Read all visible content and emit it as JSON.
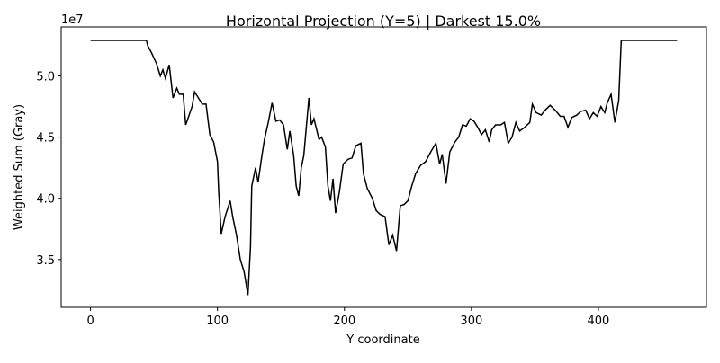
{
  "chart_data": {
    "type": "line",
    "title": "Horizontal Projection (Y=5) | Darkest 15.0%",
    "xlabel": "Y coordinate",
    "ylabel": "Weighted Sum (Gray)",
    "y_offset_label": "1e7",
    "color": "#000000",
    "x": [
      0,
      44,
      45,
      48,
      52,
      55,
      57,
      59,
      62,
      65,
      68,
      70,
      73,
      75,
      80,
      82,
      85,
      88,
      91,
      94,
      97,
      100,
      101,
      103,
      106,
      110,
      112,
      115,
      118,
      121,
      124,
      126,
      127,
      130,
      132,
      135,
      137,
      140,
      143,
      146,
      149,
      152,
      155,
      157,
      160,
      162,
      164,
      166,
      168,
      172,
      174,
      176,
      180,
      182,
      185,
      187,
      189,
      191,
      193,
      196,
      199,
      203,
      206,
      209,
      213,
      215,
      218,
      222,
      225,
      228,
      232,
      235,
      238,
      241,
      244,
      247,
      250,
      253,
      256,
      260,
      264,
      268,
      272,
      275,
      277,
      280,
      283,
      287,
      290,
      293,
      296,
      299,
      302,
      305,
      308,
      311,
      314,
      316,
      319,
      323,
      326,
      329,
      332,
      335,
      338,
      342,
      346,
      348,
      351,
      355,
      358,
      362,
      366,
      370,
      373,
      376,
      379,
      383,
      386,
      390,
      393,
      396,
      399,
      402,
      405,
      407,
      410,
      413,
      416,
      418,
      462
    ],
    "values": [
      5.29,
      5.29,
      5.25,
      5.19,
      5.1,
      5.0,
      5.05,
      4.98,
      5.09,
      4.82,
      4.9,
      4.85,
      4.85,
      4.6,
      4.75,
      4.87,
      4.82,
      4.77,
      4.77,
      4.52,
      4.46,
      4.3,
      4.05,
      3.71,
      3.85,
      3.98,
      3.85,
      3.7,
      3.5,
      3.4,
      3.21,
      3.6,
      4.1,
      4.25,
      4.13,
      4.35,
      4.48,
      4.62,
      4.78,
      4.63,
      4.64,
      4.6,
      4.4,
      4.55,
      4.35,
      4.1,
      4.02,
      4.25,
      4.35,
      4.82,
      4.6,
      4.65,
      4.48,
      4.5,
      4.42,
      4.1,
      3.98,
      4.16,
      3.88,
      4.05,
      4.28,
      4.32,
      4.33,
      4.43,
      4.45,
      4.2,
      4.08,
      4.0,
      3.9,
      3.87,
      3.85,
      3.62,
      3.7,
      3.57,
      3.94,
      3.95,
      3.98,
      4.1,
      4.2,
      4.27,
      4.3,
      4.38,
      4.45,
      4.28,
      4.36,
      4.12,
      4.38,
      4.46,
      4.5,
      4.6,
      4.59,
      4.65,
      4.63,
      4.58,
      4.52,
      4.56,
      4.46,
      4.56,
      4.6,
      4.6,
      4.62,
      4.45,
      4.5,
      4.62,
      4.55,
      4.58,
      4.62,
      4.77,
      4.7,
      4.68,
      4.72,
      4.76,
      4.72,
      4.67,
      4.67,
      4.58,
      4.66,
      4.68,
      4.71,
      4.72,
      4.65,
      4.7,
      4.67,
      4.75,
      4.7,
      4.78,
      4.85,
      4.62,
      4.8,
      5.29,
      5.29
    ],
    "xlim": [
      -23.1,
      485.1
    ],
    "ylim": [
      3.11,
      5.4
    ],
    "xticks": [
      0,
      100,
      200,
      300,
      400
    ],
    "yticks": [
      3.5,
      {
        "value": 4,
        "label": "4.0"
      },
      4.5,
      {
        "value": 5,
        "label": "5.0"
      }
    ]
  }
}
